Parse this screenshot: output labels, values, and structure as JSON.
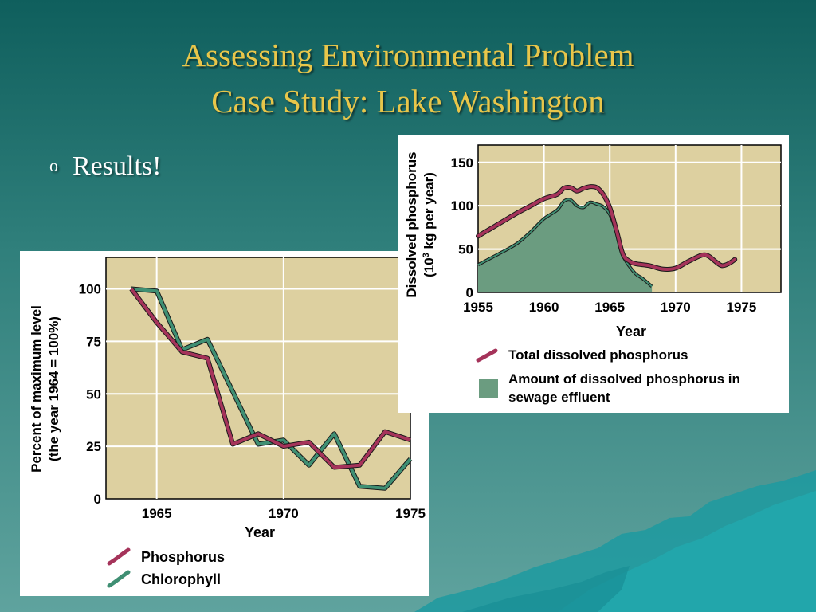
{
  "slide": {
    "title_line_1": "Assessing Environmental Problem",
    "title_line_2": "Case Study: Lake Washington",
    "bullet_marker": "o",
    "bullet_text": "Results!"
  },
  "colors": {
    "title": "#e8c64a",
    "plot_bg": "#ddd0a0",
    "phosphorus": "#a5335a",
    "chlorophyll": "#3f8f73",
    "effluent_fill": "#6b9c80"
  },
  "chart_data": [
    {
      "type": "line",
      "title": "",
      "xlabel": "Year",
      "ylabel_line_1": "Percent of maximum level",
      "ylabel_line_2": "(the year 1964 = 100%)",
      "xlim": [
        1963,
        1975
      ],
      "ylim": [
        0,
        115
      ],
      "xticks": [
        1965,
        1970,
        1975
      ],
      "yticks": [
        0,
        25,
        50,
        75,
        100
      ],
      "grid": true,
      "legend_position": "bottom-left",
      "series": [
        {
          "name": "Phosphorus",
          "x": [
            1964,
            1965,
            1966,
            1967,
            1968,
            1969,
            1970,
            1971,
            1972,
            1973,
            1974,
            1975
          ],
          "values": [
            100,
            84,
            70,
            67,
            26,
            31,
            25,
            27,
            15,
            16,
            32,
            28
          ]
        },
        {
          "name": "Chlorophyll",
          "x": [
            1964,
            1965,
            1966,
            1967,
            1968,
            1969,
            1970,
            1971,
            1972,
            1973,
            1974,
            1975
          ],
          "values": [
            100,
            99,
            71,
            76,
            51,
            26,
            28,
            16,
            31,
            6,
            5,
            19
          ]
        }
      ]
    },
    {
      "type": "area",
      "title": "",
      "xlabel": "Year",
      "ylabel_line_1": "Dissolved phosphorus",
      "ylabel_line_2_before": "(10",
      "ylabel_line_2_sup": "3",
      "ylabel_line_2_after": " kg per year)",
      "xlim": [
        1955,
        1978
      ],
      "ylim": [
        0,
        170
      ],
      "xticks": [
        1955,
        1960,
        1965,
        1970,
        1975
      ],
      "yticks": [
        0,
        50,
        100,
        150
      ],
      "grid": true,
      "legend_position": "bottom-left",
      "series": [
        {
          "name": "Total dissolved phosphorus",
          "kind": "line",
          "x": [
            1955,
            1956,
            1957,
            1958,
            1959,
            1960,
            1961,
            1961.5,
            1962,
            1962.5,
            1963,
            1963.5,
            1964,
            1964.5,
            1965,
            1965.5,
            1966,
            1966.5,
            1967,
            1968,
            1969,
            1970,
            1971,
            1972,
            1972.5,
            1973,
            1973.5,
            1974,
            1974.5
          ],
          "values": [
            65,
            74,
            83,
            92,
            100,
            108,
            113,
            120,
            121,
            117,
            120,
            122,
            121,
            113,
            98,
            72,
            44,
            36,
            33,
            31,
            27,
            28,
            36,
            43,
            42,
            36,
            31,
            33,
            38
          ]
        },
        {
          "name": "Amount of dissolved phosphorus in sewage effluent",
          "kind": "area",
          "x": [
            1955,
            1956,
            1957,
            1958,
            1959,
            1960,
            1961,
            1961.5,
            1962,
            1962.5,
            1963,
            1963.5,
            1964,
            1964.5,
            1965,
            1965.5,
            1966,
            1966.5,
            1967,
            1967.5,
            1968.2
          ],
          "values": [
            32,
            40,
            48,
            57,
            70,
            85,
            95,
            105,
            107,
            100,
            98,
            104,
            102,
            99,
            90,
            70,
            43,
            30,
            21,
            16,
            7
          ]
        }
      ]
    }
  ]
}
